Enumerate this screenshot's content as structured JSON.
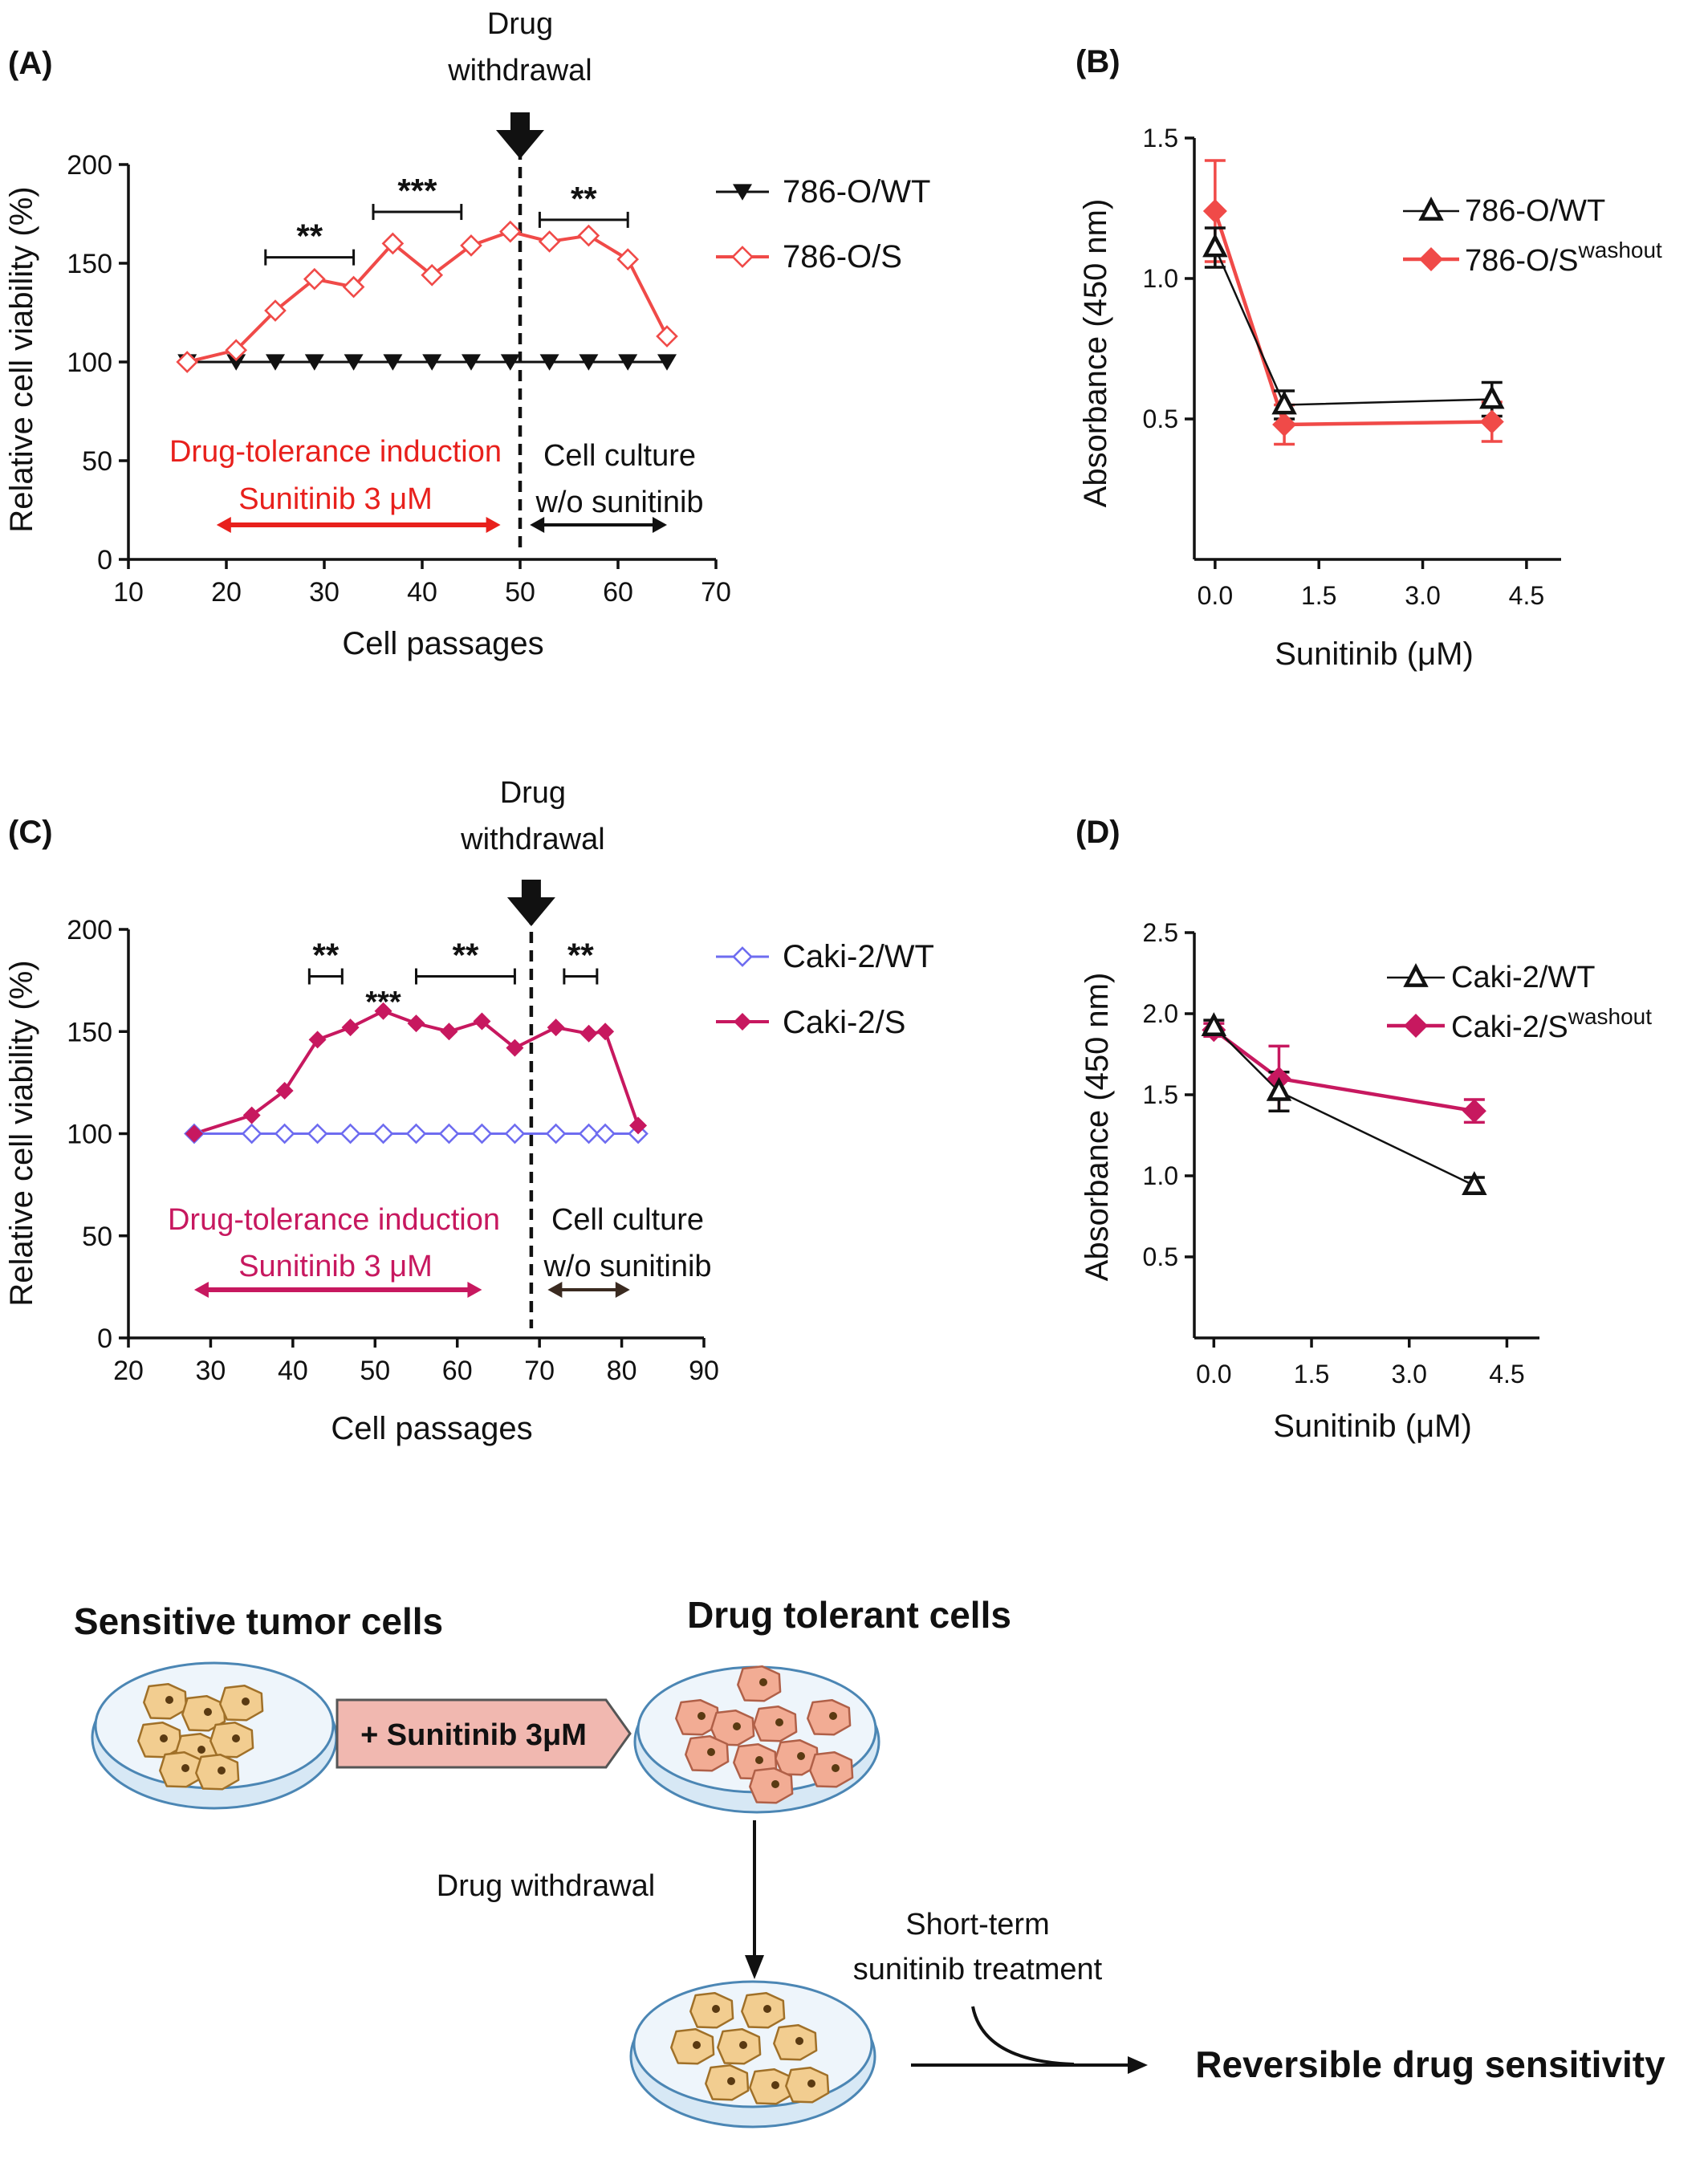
{
  "colors": {
    "red": "#f04a48",
    "redDark": "#e8201c",
    "magenta": "#c7185f",
    "blue": "#6e6cf0",
    "black": "#111111",
    "cellFill": "#f2cd90",
    "cellStroke": "#a07028",
    "tolerantFill": "#f2ac94",
    "tolerantStroke": "#b06048",
    "arrowBoxFill": "#f1b8b0",
    "dishStroke": "#4b86b4",
    "dishFill": "#eef5fb"
  },
  "chart_data": [
    {
      "panel": "(A)",
      "type": "line",
      "xlabel": "Cell passages",
      "ylabel": "Relative cell viability (%)",
      "xlim": [
        10,
        70
      ],
      "ylim": [
        0,
        200
      ],
      "xticks": [
        10,
        20,
        30,
        40,
        50,
        60,
        70
      ],
      "yticks": [
        0,
        50,
        100,
        150,
        200
      ],
      "legend_position": "right",
      "series": [
        {
          "name": "786-O/WT",
          "color": "#111111",
          "marker": "triangle-down",
          "x": [
            16,
            21,
            25,
            29,
            33,
            37,
            41,
            45,
            49,
            53,
            57,
            61,
            65
          ],
          "y": [
            100,
            100,
            100,
            100,
            100,
            100,
            100,
            100,
            100,
            100,
            100,
            100,
            100
          ]
        },
        {
          "name": "786-O/S",
          "color": "#f04a48",
          "marker": "diamond-open",
          "x": [
            16,
            21,
            25,
            29,
            33,
            37,
            41,
            45,
            49,
            53,
            57,
            61,
            65
          ],
          "y": [
            100,
            106,
            126,
            142,
            138,
            160,
            144,
            159,
            166,
            161,
            164,
            152,
            113
          ]
        }
      ],
      "vline": {
        "x": 50,
        "label_line1": "Drug",
        "label_line2": "withdrawal"
      },
      "significance": [
        {
          "x1": 24,
          "x2": 33,
          "y": 153,
          "label": "**"
        },
        {
          "x1": 35,
          "x2": 44,
          "y": 176,
          "label": "***"
        },
        {
          "x1": 52,
          "x2": 61,
          "y": 172,
          "label": "**"
        }
      ],
      "annotations": {
        "left_line1": "Drug-tolerance induction",
        "left_line2": "Sunitinib 3 μM",
        "left_range": [
          19,
          48
        ],
        "right_line1": "Cell culture",
        "right_line2": "w/o sunitinib",
        "right_range": [
          51,
          65
        ]
      }
    },
    {
      "panel": "(B)",
      "type": "line",
      "xlabel": "Sunitinib (μM)",
      "ylabel": "Absorbance (450 nm)",
      "xlim": [
        -0.3,
        5.0
      ],
      "ylim": [
        0,
        1.5
      ],
      "xticks": [
        0.0,
        1.5,
        3.0,
        4.5
      ],
      "xtick_labels": [
        "0.0",
        "1.5",
        "3.0",
        "4.5"
      ],
      "yticks": [
        0.5,
        1.0,
        1.5
      ],
      "ytick_labels": [
        "0.5",
        "1.0",
        "1.5"
      ],
      "legend_position": "top-right",
      "series": [
        {
          "name": "786-O/WT",
          "color": "#111111",
          "marker": "triangle-open",
          "x": [
            0,
            1,
            4
          ],
          "y": [
            1.11,
            0.55,
            0.57
          ],
          "err": [
            0.07,
            0.05,
            0.06
          ]
        },
        {
          "name": "786-O/S",
          "sup": "washout",
          "color": "#f04a48",
          "marker": "diamond",
          "x": [
            0,
            1,
            4
          ],
          "y": [
            1.24,
            0.48,
            0.49
          ],
          "err": [
            0.18,
            0.07,
            0.07
          ]
        }
      ]
    },
    {
      "panel": "(C)",
      "type": "line",
      "xlabel": "Cell passages",
      "ylabel": "Relative cell viability (%)",
      "xlim": [
        20,
        90
      ],
      "ylim": [
        0,
        200
      ],
      "xticks": [
        20,
        30,
        40,
        50,
        60,
        70,
        80,
        90
      ],
      "yticks": [
        0,
        50,
        100,
        150,
        200
      ],
      "legend_position": "right",
      "series": [
        {
          "name": "Caki-2/WT",
          "color": "#6e6cf0",
          "marker": "diamond-open",
          "x": [
            28,
            35,
            39,
            43,
            47,
            51,
            55,
            59,
            63,
            67,
            72,
            76,
            78,
            82
          ],
          "y": [
            100,
            100,
            100,
            100,
            100,
            100,
            100,
            100,
            100,
            100,
            100,
            100,
            100,
            100
          ]
        },
        {
          "name": "Caki-2/S",
          "color": "#c7185f",
          "marker": "diamond",
          "x": [
            28,
            35,
            39,
            43,
            47,
            51,
            55,
            59,
            63,
            67,
            72,
            76,
            78,
            82
          ],
          "y": [
            100,
            109,
            121,
            146,
            152,
            160,
            154,
            150,
            155,
            142,
            152,
            149,
            150,
            104
          ]
        }
      ],
      "vline": {
        "x": 69,
        "label_line1": "Drug",
        "label_line2": "withdrawal"
      },
      "significance": [
        {
          "x1": 42,
          "x2": 46,
          "y": 177,
          "label": "**"
        },
        {
          "x": 51,
          "y": 165,
          "label": "***"
        },
        {
          "x1": 55,
          "x2": 67,
          "y": 177,
          "label": "**"
        },
        {
          "x1": 73,
          "x2": 77,
          "y": 177,
          "label": "**"
        }
      ],
      "annotations": {
        "left_line1": "Drug-tolerance induction",
        "left_line2": "Sunitinib 3 μM",
        "left_range": [
          28,
          63
        ],
        "right_line1": "Cell culture",
        "right_line2": "w/o sunitinib",
        "right_range": [
          71,
          81
        ]
      }
    },
    {
      "panel": "(D)",
      "type": "line",
      "xlabel": "Sunitinib (μM)",
      "ylabel": "Absorbance (450 nm)",
      "xlim": [
        -0.3,
        5.0
      ],
      "ylim": [
        0,
        2.5
      ],
      "xticks": [
        0.0,
        1.5,
        3.0,
        4.5
      ],
      "xtick_labels": [
        "0.0",
        "1.5",
        "3.0",
        "4.5"
      ],
      "yticks": [
        0.5,
        1.0,
        1.5,
        2.0,
        2.5
      ],
      "ytick_labels": [
        "0.5",
        "1.0",
        "1.5",
        "2.0",
        "2.5"
      ],
      "legend_position": "top-right",
      "series": [
        {
          "name": "Caki-2/WT",
          "color": "#111111",
          "marker": "triangle-open",
          "x": [
            0,
            1,
            4
          ],
          "y": [
            1.92,
            1.52,
            0.94
          ],
          "err": [
            0.04,
            0.12,
            0.05
          ]
        },
        {
          "name": "Caki-2/S",
          "sup": "washout",
          "color": "#c7185f",
          "marker": "diamond",
          "x": [
            0,
            1,
            4
          ],
          "y": [
            1.9,
            1.6,
            1.4
          ],
          "err": [
            0.04,
            0.2,
            0.07
          ]
        }
      ]
    }
  ],
  "schematic": {
    "sensitive_title": "Sensitive tumor cells",
    "tolerant_title": "Drug tolerant cells",
    "treatment_label": "+ Sunitinib 3μM",
    "withdrawal_label": "Drug withdrawal",
    "short_term_line1": "Short-term",
    "short_term_line2": "sunitinib treatment",
    "result_label": "Reversible drug sensitivity"
  }
}
